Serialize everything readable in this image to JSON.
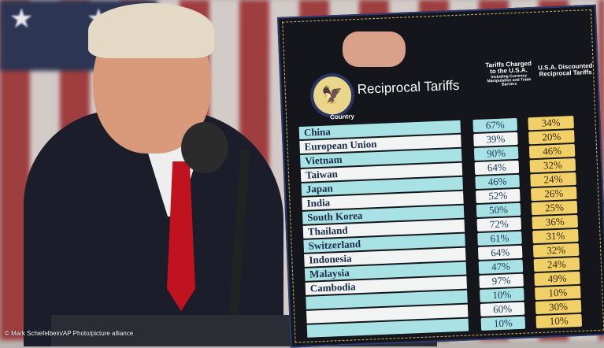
{
  "board": {
    "title": "Reciprocal Tariffs",
    "column_country": "Country",
    "column_charged": "Tariffs Charged to the U.S.A.",
    "column_charged_note": "Including Currency Manipulation and Trade Barriers",
    "column_reciprocal": "U.S.A. Discounted Reciprocal Tariffs",
    "rows": [
      {
        "country": "China",
        "charged": "67%",
        "reciprocal": "34%"
      },
      {
        "country": "European Union",
        "charged": "39%",
        "reciprocal": "20%"
      },
      {
        "country": "Vietnam",
        "charged": "90%",
        "reciprocal": "46%"
      },
      {
        "country": "Taiwan",
        "charged": "64%",
        "reciprocal": "32%"
      },
      {
        "country": "Japan",
        "charged": "46%",
        "reciprocal": "24%"
      },
      {
        "country": "India",
        "charged": "52%",
        "reciprocal": "26%"
      },
      {
        "country": "South Korea",
        "charged": "50%",
        "reciprocal": "25%"
      },
      {
        "country": "Thailand",
        "charged": "72%",
        "reciprocal": "36%"
      },
      {
        "country": "Switzerland",
        "charged": "61%",
        "reciprocal": "31%"
      },
      {
        "country": "Indonesia",
        "charged": "64%",
        "reciprocal": "32%"
      },
      {
        "country": "Malaysia",
        "charged": "47%",
        "reciprocal": "24%"
      },
      {
        "country": "Cambodia",
        "charged": "97%",
        "reciprocal": "49%"
      },
      {
        "country": "",
        "charged": "10%",
        "reciprocal": "10%"
      },
      {
        "country": "",
        "charged": "60%",
        "reciprocal": "30%"
      },
      {
        "country": "",
        "charged": "10%",
        "reciprocal": "10%"
      }
    ]
  },
  "credit": "© Mark Schiefelbein/AP Photo/picture alliance"
}
